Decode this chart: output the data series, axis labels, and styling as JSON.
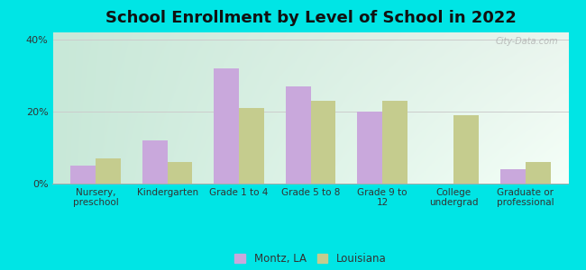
{
  "title": "School Enrollment by Level of School in 2022",
  "categories": [
    "Nursery,\npreschool",
    "Kindergarten",
    "Grade 1 to 4",
    "Grade 5 to 8",
    "Grade 9 to\n12",
    "College\nundergrad",
    "Graduate or\nprofessional"
  ],
  "montz": [
    5.0,
    12.0,
    32.0,
    27.0,
    20.0,
    0.0,
    4.0
  ],
  "louisiana": [
    7.0,
    6.0,
    21.0,
    23.0,
    23.0,
    19.0,
    6.0
  ],
  "montz_color": "#C9A8DC",
  "louisiana_color": "#C5CC8E",
  "background_outer": "#00E5E5",
  "bg_topleft": "#c8e8d8",
  "bg_topright": "#eaf5ee",
  "bg_bottomleft": "#c8e8d8",
  "bg_bottomright": "#f5fff8",
  "ylim": [
    0,
    42
  ],
  "yticks": [
    0,
    20,
    40
  ],
  "ytick_labels": [
    "0%",
    "20%",
    "40%"
  ],
  "bar_width": 0.35,
  "title_fontsize": 13,
  "legend_label_montz": "Montz, LA",
  "legend_label_louisiana": "Louisiana",
  "watermark": "City-Data.com"
}
